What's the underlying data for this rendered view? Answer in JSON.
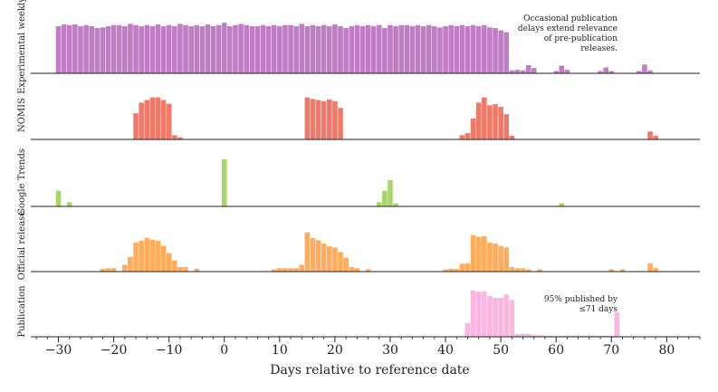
{
  "chart_data": {
    "type": "bar",
    "layout": "stacked-panels",
    "xlabel": "Days relative to reference date",
    "xlim": [
      -35,
      86
    ],
    "xticks": [
      -30,
      -20,
      -10,
      0,
      10,
      20,
      30,
      40,
      50,
      60,
      70,
      80
    ],
    "xtick_labels": [
      "−30",
      "−20",
      "−10",
      "0",
      "10",
      "20",
      "30",
      "40",
      "50",
      "60",
      "70",
      "80"
    ],
    "panels": [
      {
        "name": "Experimental weekly",
        "color": "#c07cc4",
        "ylim": [
          0,
          1
        ],
        "annotation": [
          "Occasional publication",
          "delays extend relevance",
          "of pre-publication",
          "releases."
        ],
        "x": [
          -30,
          -29,
          -28,
          -27,
          -26,
          -25,
          -24,
          -23,
          -22,
          -21,
          -20,
          -19,
          -18,
          -17,
          -16,
          -15,
          -14,
          -13,
          -12,
          -11,
          -10,
          -9,
          -8,
          -7,
          -6,
          -5,
          -4,
          -3,
          -2,
          -1,
          0,
          1,
          2,
          3,
          4,
          5,
          6,
          7,
          8,
          9,
          10,
          11,
          12,
          13,
          14,
          15,
          16,
          17,
          18,
          19,
          20,
          21,
          22,
          23,
          24,
          25,
          26,
          27,
          28,
          29,
          30,
          31,
          32,
          33,
          34,
          35,
          36,
          37,
          38,
          39,
          40,
          41,
          42,
          43,
          44,
          45,
          46,
          47,
          48,
          49,
          50,
          51,
          52,
          53,
          54,
          55,
          56,
          60,
          61,
          62,
          68,
          69,
          70,
          75,
          76,
          77
        ],
        "values": [
          0.8,
          0.83,
          0.82,
          0.83,
          0.8,
          0.82,
          0.8,
          0.77,
          0.78,
          0.8,
          0.82,
          0.82,
          0.8,
          0.84,
          0.82,
          0.8,
          0.82,
          0.8,
          0.83,
          0.8,
          0.82,
          0.8,
          0.84,
          0.82,
          0.8,
          0.82,
          0.8,
          0.83,
          0.8,
          0.82,
          0.86,
          0.8,
          0.82,
          0.84,
          0.82,
          0.8,
          0.8,
          0.82,
          0.8,
          0.82,
          0.8,
          0.82,
          0.82,
          0.8,
          0.84,
          0.8,
          0.82,
          0.8,
          0.82,
          0.8,
          0.83,
          0.8,
          0.77,
          0.8,
          0.82,
          0.8,
          0.82,
          0.8,
          0.82,
          0.77,
          0.82,
          0.8,
          0.82,
          0.82,
          0.8,
          0.82,
          0.8,
          0.82,
          0.8,
          0.78,
          0.8,
          0.82,
          0.8,
          0.82,
          0.8,
          0.82,
          0.8,
          0.82,
          0.78,
          0.77,
          0.73,
          0.7,
          0.05,
          0.06,
          0.05,
          0.14,
          0.09,
          0.04,
          0.13,
          0.06,
          0.04,
          0.1,
          0.04,
          0.04,
          0.15,
          0.05
        ]
      },
      {
        "name": "NOMIS",
        "color": "#f07a6a",
        "ylim": [
          0,
          1
        ],
        "x": [
          -16,
          -15,
          -14,
          -13,
          -12,
          -11,
          -10,
          -9,
          -8,
          15,
          16,
          17,
          18,
          19,
          20,
          21,
          43,
          44,
          45,
          46,
          47,
          48,
          49,
          50,
          51,
          52,
          77,
          78
        ],
        "values": [
          0.5,
          0.7,
          0.75,
          0.8,
          0.8,
          0.75,
          0.68,
          0.08,
          0.04,
          0.8,
          0.77,
          0.75,
          0.73,
          0.76,
          0.73,
          0.6,
          0.08,
          0.12,
          0.4,
          0.7,
          0.8,
          0.65,
          0.67,
          0.62,
          0.48,
          0.07,
          0.15,
          0.07
        ]
      },
      {
        "name": "Google Trends",
        "color": "#a8d66a",
        "ylim": [
          0,
          1
        ],
        "x": [
          -30,
          -28,
          0,
          28,
          29,
          30,
          31,
          61
        ],
        "values": [
          0.3,
          0.08,
          0.9,
          0.08,
          0.3,
          0.5,
          0.06,
          0.06
        ]
      },
      {
        "name": "Official release",
        "color": "#ffac5c",
        "ylim": [
          0,
          1
        ],
        "x": [
          -22,
          -21,
          -20,
          -18,
          -17,
          -16,
          -15,
          -14,
          -13,
          -12,
          -11,
          -10,
          -9,
          -8,
          -7,
          -5,
          9,
          10,
          11,
          12,
          13,
          14,
          15,
          16,
          17,
          18,
          19,
          20,
          21,
          22,
          23,
          24,
          26,
          40,
          41,
          42,
          43,
          44,
          45,
          46,
          47,
          48,
          49,
          50,
          51,
          52,
          53,
          54,
          55,
          57,
          70,
          72,
          77,
          78
        ],
        "values": [
          0.05,
          0.06,
          0.06,
          0.12,
          0.26,
          0.52,
          0.55,
          0.6,
          0.57,
          0.55,
          0.46,
          0.33,
          0.2,
          0.08,
          0.08,
          0.05,
          0.04,
          0.06,
          0.06,
          0.06,
          0.06,
          0.12,
          0.7,
          0.6,
          0.56,
          0.5,
          0.45,
          0.43,
          0.35,
          0.25,
          0.08,
          0.06,
          0.04,
          0.04,
          0.05,
          0.05,
          0.14,
          0.15,
          0.65,
          0.62,
          0.63,
          0.52,
          0.5,
          0.46,
          0.43,
          0.08,
          0.06,
          0.06,
          0.04,
          0.04,
          0.04,
          0.04,
          0.15,
          0.06
        ]
      },
      {
        "name": "Publication",
        "color": "#fbb6e0",
        "ylim": [
          0,
          1
        ],
        "annotation": [
          "95% published by",
          "≤71 days"
        ],
        "x": [
          10,
          11,
          12,
          13,
          44,
          45,
          46,
          47,
          48,
          49,
          50,
          51,
          52,
          53,
          54,
          55,
          56,
          57,
          58,
          59,
          61,
          62,
          63,
          64,
          65,
          66,
          67,
          68,
          69,
          70,
          71
        ],
        "values": [
          0.02,
          0.02,
          0.02,
          0.02,
          0.25,
          0.85,
          0.83,
          0.83,
          0.75,
          0.72,
          0.72,
          0.78,
          0.68,
          0.05,
          0.05,
          0.05,
          0.03,
          0.03,
          0.02,
          0.02,
          0.02,
          0.02,
          0.02,
          0.02,
          0.02,
          0.02,
          0.02,
          0.02,
          0.02,
          0.02,
          0.45
        ]
      }
    ]
  }
}
